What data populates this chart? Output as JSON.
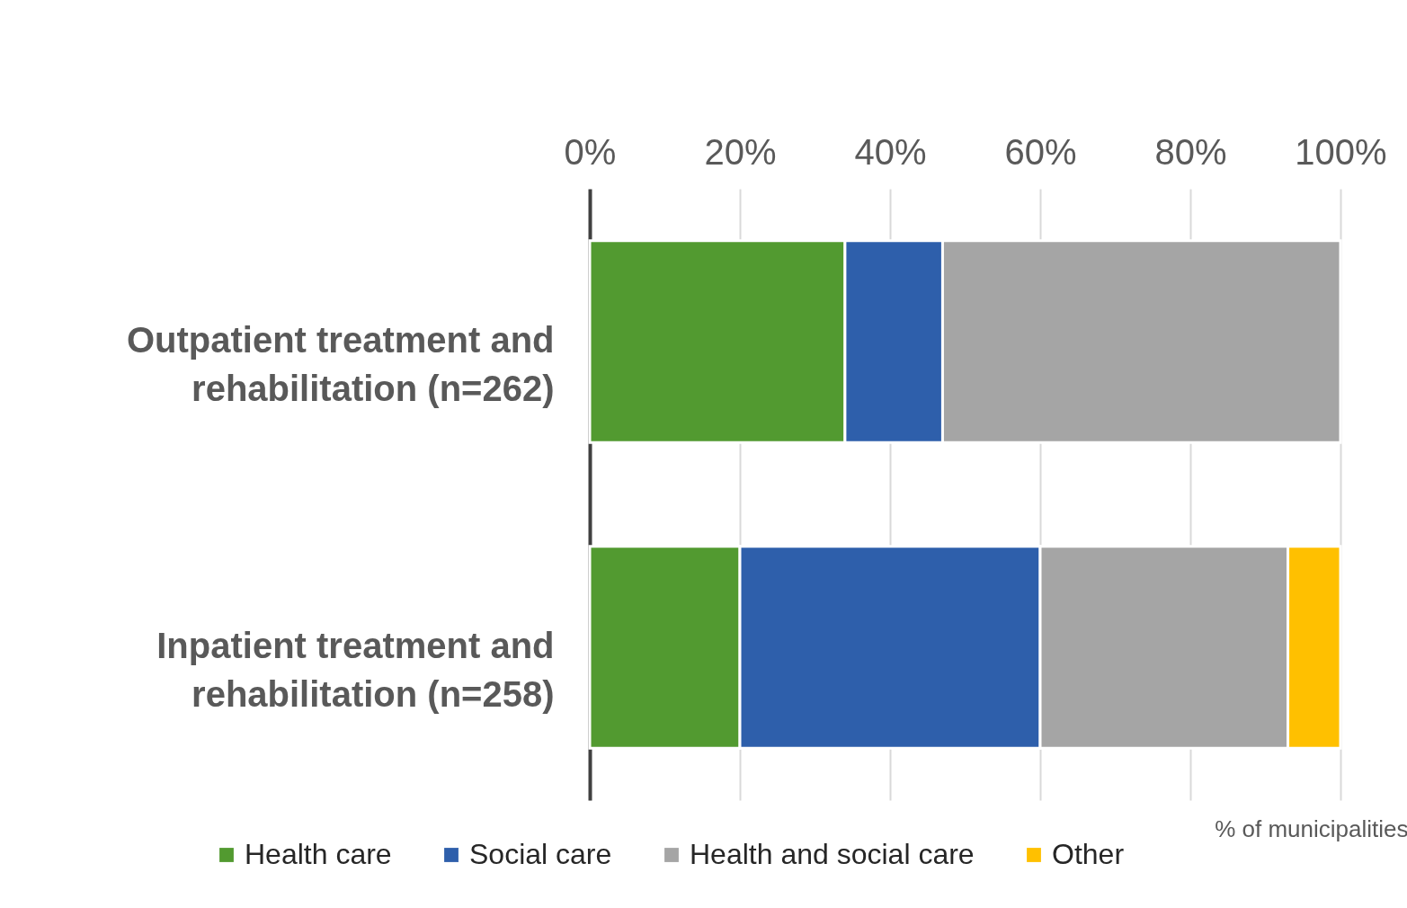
{
  "chart_data": {
    "type": "bar",
    "orientation": "horizontal",
    "stacked": true,
    "xlabel": "% of municipalities",
    "categories": [
      "Outpatient treatment and rehabilitation (n=262)",
      "Inpatient treatment and rehabilitation (n=258)"
    ],
    "series": [
      {
        "name": "Health care",
        "color": "#529a30",
        "values": [
          34,
          20
        ]
      },
      {
        "name": "Social care",
        "color": "#2e5fab",
        "values": [
          13,
          40
        ]
      },
      {
        "name": "Health and social care",
        "color": "#a5a5a5",
        "values": [
          53,
          33
        ]
      },
      {
        "name": "Other",
        "color": "#ffc000",
        "values": [
          null,
          7
        ]
      }
    ],
    "xlim": [
      0,
      100
    ],
    "xticks": [
      {
        "value": 0,
        "label": "0%"
      },
      {
        "value": 20,
        "label": "20%"
      },
      {
        "value": 40,
        "label": "40%"
      },
      {
        "value": 60,
        "label": "60%"
      },
      {
        "value": 80,
        "label": "80%"
      },
      {
        "value": 100,
        "label": "100%"
      }
    ],
    "grid": "x",
    "legend": "bottom"
  }
}
